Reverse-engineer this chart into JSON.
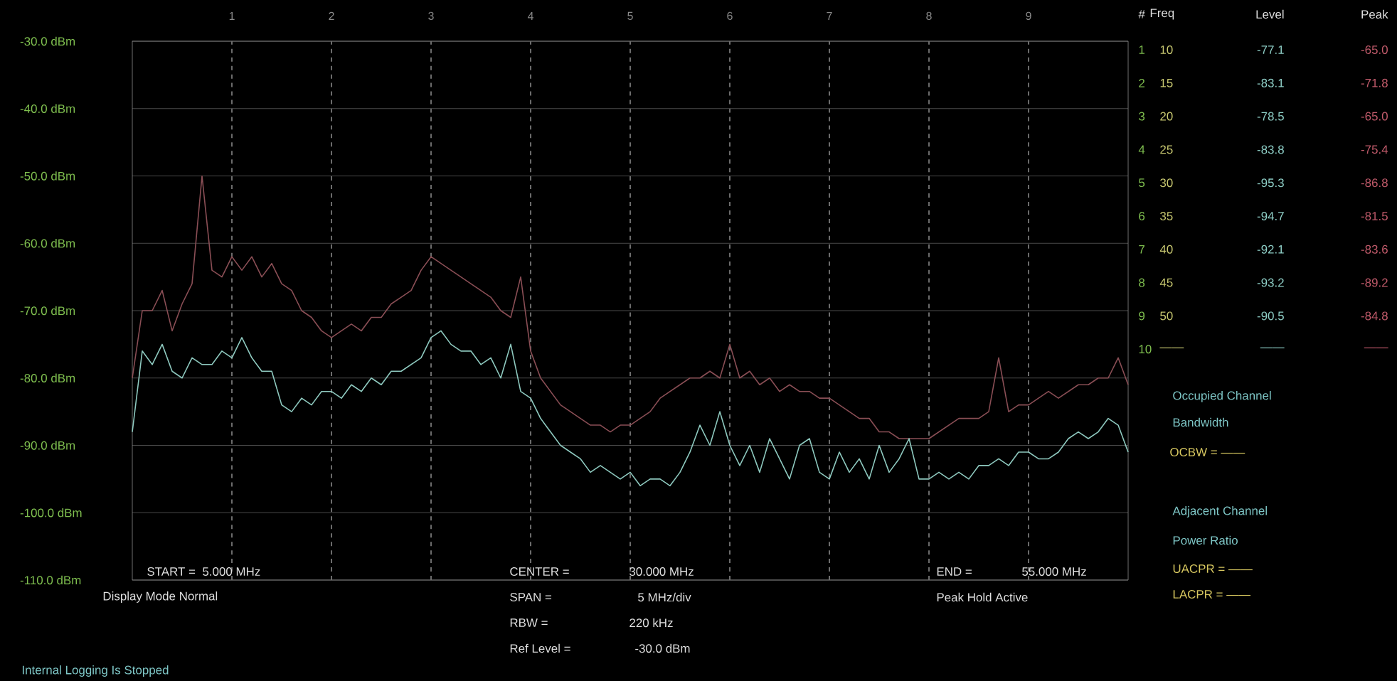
{
  "chart_data": {
    "type": "line",
    "categories": [
      null,
      null,
      null,
      null,
      null,
      null,
      null,
      null,
      null,
      null,
      "1",
      null,
      null,
      null,
      null,
      null,
      null,
      null,
      null,
      null,
      "2",
      null,
      null,
      null,
      null,
      null,
      null,
      null,
      null,
      null,
      "3",
      null,
      null,
      null,
      null,
      null,
      null,
      null,
      null,
      null,
      "4",
      null,
      null,
      null,
      null,
      null,
      null,
      null,
      null,
      null,
      "5",
      null,
      null,
      null,
      null,
      null,
      null,
      null,
      null,
      null,
      "6",
      null,
      null,
      null,
      null,
      null,
      null,
      null,
      null,
      null,
      "7",
      null,
      null,
      null,
      null,
      null,
      null,
      null,
      null,
      null,
      "8",
      null,
      null,
      null,
      null,
      null,
      null,
      null,
      null,
      null,
      "9",
      null,
      null,
      null,
      null,
      null,
      null,
      null,
      null,
      null,
      null
    ],
    "ylim": [
      -110,
      -30
    ],
    "yticks": [
      {
        "value": -30,
        "label": "-30.0 dBm"
      },
      {
        "value": -40,
        "label": "-40.0 dBm"
      },
      {
        "value": -50,
        "label": "-50.0 dBm"
      },
      {
        "value": -60,
        "label": "-60.0 dBm"
      },
      {
        "value": -70,
        "label": "-70.0 dBm"
      },
      {
        "value": -80,
        "label": "-80.0 dBm"
      },
      {
        "value": -90,
        "label": "-90.0 dBm"
      },
      {
        "value": -100,
        "label": "-100.0 dBm"
      },
      {
        "value": -110,
        "label": "-110.0 dBm"
      }
    ],
    "grid": true,
    "line_style": "solid",
    "series": [
      {
        "color": "#8a4e55",
        "values": [
          -80,
          -70,
          -70,
          -67,
          -73,
          -69,
          -66,
          -50,
          -64,
          -65,
          -62,
          -64,
          -62,
          -65,
          -63,
          -66,
          -67,
          -70,
          -71,
          -73,
          -74,
          -73,
          -72,
          -73,
          -71,
          -71,
          -69,
          -68,
          -67,
          -64,
          -62,
          -63,
          -64,
          -65,
          -66,
          -67,
          -68,
          -70,
          -71,
          -65,
          -76,
          -80,
          -82,
          -84,
          -85,
          -86,
          -87,
          -87,
          -88,
          -87,
          -87,
          -86,
          -85,
          -83,
          -82,
          -81,
          -80,
          -80,
          -79,
          -80,
          -75,
          -80,
          -79,
          -81,
          -80,
          -82,
          -81,
          -82,
          -82,
          -83,
          -83,
          -84,
          -85,
          -86,
          -86,
          -88,
          -88,
          -89,
          -89,
          -89,
          -89,
          -88,
          -87,
          -86,
          -86,
          -86,
          -85,
          -77,
          -85,
          -84,
          -84,
          -83,
          -82,
          -83,
          -82,
          -81,
          -81,
          -80,
          -80,
          -77,
          -81
        ]
      },
      {
        "color": "#8ec9bf",
        "values": [
          -88,
          -76,
          -78,
          -75,
          -79,
          -80,
          -77,
          -78,
          -78,
          -76,
          -77,
          -74,
          -77,
          -79,
          -79,
          -84,
          -85,
          -83,
          -84,
          -82,
          -82,
          -83,
          -81,
          -82,
          -80,
          -81,
          -79,
          -79,
          -78,
          -77,
          -74,
          -73,
          -75,
          -76,
          -76,
          -78,
          -77,
          -80,
          -75,
          -82,
          -83,
          -86,
          -88,
          -90,
          -91,
          -92,
          -94,
          -93,
          -94,
          -95,
          -94,
          -96,
          -95,
          -95,
          -96,
          -94,
          -91,
          -87,
          -90,
          -85,
          -90,
          -93,
          -90,
          -94,
          -89,
          -92,
          -95,
          -90,
          -89,
          -94,
          -95,
          -91,
          -94,
          -92,
          -95,
          -90,
          -94,
          -92,
          -89,
          -95,
          -95,
          -94,
          -95,
          -94,
          -95,
          -93,
          -93,
          -92,
          -93,
          -91,
          -91,
          -92,
          -92,
          -91,
          -89,
          -88,
          -89,
          -88,
          -86,
          -87,
          -91
        ]
      }
    ],
    "annotations": [
      "START =",
      "5.000 MHz",
      "Display Mode Normal",
      "Internal Logging Is Stopped",
      "CENTER =",
      "30.000 MHz",
      "SPAN =",
      "5 MHz/div",
      "RBW =",
      "220 kHz",
      "Ref Level =",
      "-30.0 dBm",
      "END =",
      "55.000 MHz",
      "Peak Hold Active",
      "Occupied Channel",
      "Bandwidth",
      "OCBW = ——",
      "Adjacent Channel",
      "Power Ratio",
      "UACPR = ——",
      "LACPR = ——",
      "#",
      "Freq",
      "Level",
      "Peak",
      "1",
      "10",
      "-77.1",
      "-65.0",
      "2",
      "15",
      "-83.1",
      "-71.8",
      "3",
      "20",
      "-78.5",
      "-65.0",
      "4",
      "25",
      "-83.8",
      "-75.4",
      "5",
      "30",
      "-95.3",
      "-86.8",
      "6",
      "35",
      "-94.7",
      "-81.5",
      "7",
      "40",
      "-92.1",
      "-83.6",
      "8",
      "45",
      "-93.2",
      "-89.2",
      "9",
      "50",
      "-90.5",
      "-84.8",
      "10",
      "——",
      "——",
      "——"
    ]
  }
}
